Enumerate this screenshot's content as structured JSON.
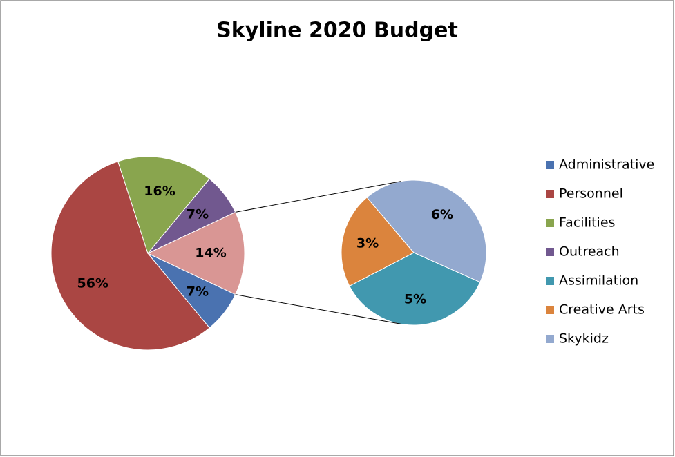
{
  "chart_data": {
    "type": "pie-of-pie",
    "title": "Skyline 2020 Budget",
    "series": [
      {
        "categories": [
          "Administrative",
          "Personnel",
          "Facilities",
          "Outreach",
          null
        ],
        "values": [
          7,
          56,
          16,
          7,
          14
        ],
        "value_labels": [
          "7%",
          "56%",
          "16%",
          "7%",
          "14%"
        ],
        "colors": [
          "#4a72b0",
          "#aa4643",
          "#89a54e",
          "#71588f",
          "#d99694"
        ]
      },
      {
        "categories": [
          "Assimilation",
          "Creative Arts",
          "Skykidz"
        ],
        "values": [
          5,
          3,
          6
        ],
        "value_labels": [
          "5%",
          "3%",
          "6%"
        ],
        "colors": [
          "#4198af",
          "#db843d",
          "#93a9cf"
        ]
      }
    ],
    "legend": "right"
  }
}
